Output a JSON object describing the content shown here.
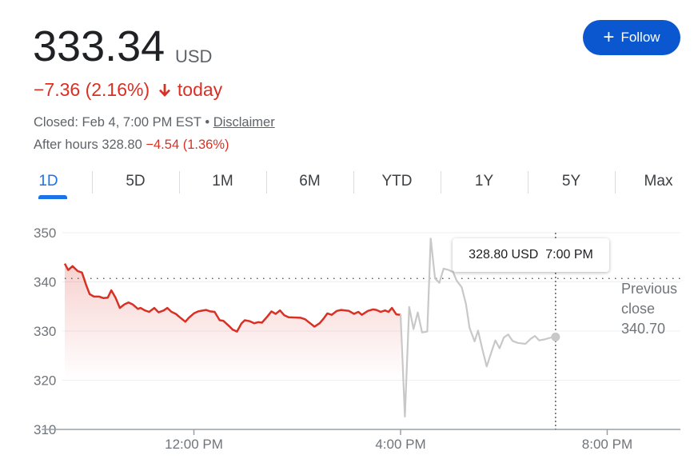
{
  "quote": {
    "price": "333.34",
    "currency": "USD",
    "change": "−7.36 (2.16%)",
    "direction_icon": "arrow-down-icon",
    "change_period": "today",
    "status": "Closed: Feb 4, 7:00 PM EST",
    "separator": "•",
    "disclaimer": "Disclaimer",
    "after_hours_label": "After hours",
    "after_hours_price": "328.80",
    "after_hours_change": "−4.54 (1.36%)"
  },
  "follow_button": {
    "icon": "plus-icon",
    "label": "Follow"
  },
  "tabs": [
    {
      "label": "1D",
      "active": true
    },
    {
      "label": "5D"
    },
    {
      "label": "1M"
    },
    {
      "label": "6M"
    },
    {
      "label": "YTD"
    },
    {
      "label": "1Y"
    },
    {
      "label": "5Y"
    },
    {
      "label": "Max"
    }
  ],
  "tooltip": {
    "price": "328.80 USD",
    "time": "7:00 PM"
  },
  "previous_close": {
    "line1": "Previous",
    "line2": "close",
    "value": "340.70"
  },
  "colors": {
    "negative": "#d93025",
    "accent": "#1a73e8",
    "button": "#0b57d0",
    "after_hours_line": "#c8c8c8"
  },
  "chart_data": {
    "type": "line",
    "yticks": [
      "350",
      "340",
      "330",
      "320",
      "310"
    ],
    "ylim": [
      310,
      350
    ],
    "xticks": [
      {
        "label": "12:00 PM",
        "t": "12:00"
      },
      {
        "label": "4:00 PM",
        "t": "16:00"
      },
      {
        "label": "8:00 PM",
        "t": "20:00"
      }
    ],
    "grid": true,
    "previous_close": 340.7,
    "series": [
      {
        "key": "regular",
        "color": "#d93025",
        "points": [
          [
            "9:30",
            343.7
          ],
          [
            "9:34",
            342.4
          ],
          [
            "9:39",
            343.2
          ],
          [
            "9:45",
            342.2
          ],
          [
            "9:50",
            341.9
          ],
          [
            "9:55",
            339.3
          ],
          [
            "9:59",
            337.5
          ],
          [
            "10:04",
            337.0
          ],
          [
            "10:10",
            337.0
          ],
          [
            "10:15",
            336.7
          ],
          [
            "10:20",
            336.8
          ],
          [
            "10:24",
            338.3
          ],
          [
            "10:29",
            336.8
          ],
          [
            "10:34",
            334.7
          ],
          [
            "10:39",
            335.4
          ],
          [
            "10:44",
            335.8
          ],
          [
            "10:49",
            335.4
          ],
          [
            "10:55",
            334.5
          ],
          [
            "10:58",
            334.7
          ],
          [
            "11:03",
            334.2
          ],
          [
            "11:08",
            333.9
          ],
          [
            "11:14",
            334.7
          ],
          [
            "11:19",
            333.8
          ],
          [
            "11:25",
            334.2
          ],
          [
            "11:29",
            334.7
          ],
          [
            "11:34",
            333.9
          ],
          [
            "11:39",
            333.5
          ],
          [
            "11:43",
            332.9
          ],
          [
            "11:50",
            331.9
          ],
          [
            "11:54",
            332.7
          ],
          [
            "12:00",
            333.6
          ],
          [
            "12:05",
            334.0
          ],
          [
            "12:14",
            334.3
          ],
          [
            "12:19",
            334.0
          ],
          [
            "12:24",
            333.9
          ],
          [
            "12:30",
            332.2
          ],
          [
            "12:34",
            332.1
          ],
          [
            "12:41",
            331.0
          ],
          [
            "12:45",
            330.3
          ],
          [
            "12:50",
            329.9
          ],
          [
            "12:55",
            331.5
          ],
          [
            "12:59",
            332.2
          ],
          [
            "13:05",
            332.0
          ],
          [
            "13:10",
            331.6
          ],
          [
            "13:15",
            331.8
          ],
          [
            "13:19",
            331.7
          ],
          [
            "13:25",
            332.9
          ],
          [
            "13:30",
            334.0
          ],
          [
            "13:35",
            333.5
          ],
          [
            "13:40",
            334.2
          ],
          [
            "13:45",
            333.2
          ],
          [
            "13:50",
            332.8
          ],
          [
            "14:04",
            332.7
          ],
          [
            "14:09",
            332.4
          ],
          [
            "14:15",
            331.6
          ],
          [
            "14:20",
            330.9
          ],
          [
            "14:26",
            331.6
          ],
          [
            "14:30",
            332.4
          ],
          [
            "14:35",
            333.6
          ],
          [
            "14:40",
            333.3
          ],
          [
            "14:46",
            334.1
          ],
          [
            "14:51",
            334.3
          ],
          [
            "15:00",
            334.1
          ],
          [
            "15:06",
            333.5
          ],
          [
            "15:11",
            333.9
          ],
          [
            "15:15",
            333.3
          ],
          [
            "15:22",
            334.1
          ],
          [
            "15:28",
            334.4
          ],
          [
            "15:32",
            334.3
          ],
          [
            "15:37",
            333.9
          ],
          [
            "15:42",
            334.2
          ],
          [
            "15:46",
            333.9
          ],
          [
            "15:50",
            334.7
          ],
          [
            "15:55",
            333.4
          ],
          [
            "16:00",
            333.3
          ]
        ]
      },
      {
        "key": "after_hours",
        "color": "#c8c8c8",
        "points": [
          [
            "16:00",
            333.4
          ],
          [
            "16:05",
            312.6
          ],
          [
            "16:10",
            334.9
          ],
          [
            "16:15",
            330.4
          ],
          [
            "16:20",
            333.8
          ],
          [
            "16:25",
            329.7
          ],
          [
            "16:31",
            329.9
          ],
          [
            "16:35",
            348.8
          ],
          [
            "16:40",
            340.7
          ],
          [
            "16:45",
            339.8
          ],
          [
            "16:50",
            342.7
          ],
          [
            "16:56",
            342.4
          ],
          [
            "17:01",
            342.0
          ],
          [
            "17:05",
            340.3
          ],
          [
            "17:11",
            338.9
          ],
          [
            "17:16",
            335.5
          ],
          [
            "17:20",
            330.7
          ],
          [
            "17:26",
            327.9
          ],
          [
            "17:30",
            330.1
          ],
          [
            "17:35",
            326.3
          ],
          [
            "17:40",
            322.8
          ],
          [
            "17:46",
            326.0
          ],
          [
            "17:50",
            328.1
          ],
          [
            "17:55",
            326.5
          ],
          [
            "18:00",
            328.7
          ],
          [
            "18:05",
            329.3
          ],
          [
            "18:10",
            328.0
          ],
          [
            "18:16",
            327.6
          ],
          [
            "18:25",
            327.4
          ],
          [
            "18:31",
            328.4
          ],
          [
            "18:36",
            329.0
          ],
          [
            "18:41",
            328.1
          ],
          [
            "18:47",
            328.3
          ],
          [
            "18:55",
            328.7
          ],
          [
            "19:00",
            328.8
          ]
        ]
      }
    ],
    "hover": {
      "t": "19:00",
      "value": 328.8
    }
  }
}
